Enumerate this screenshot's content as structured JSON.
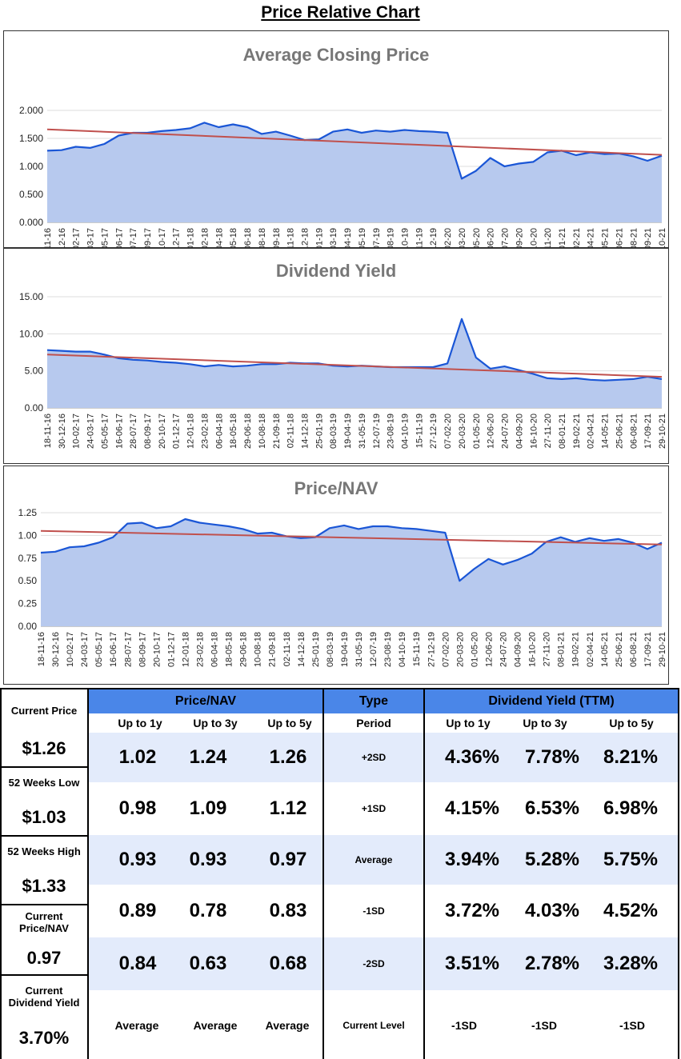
{
  "page_title": "Price Relative Chart",
  "dates": [
    "18-11-16",
    "30-12-16",
    "10-02-17",
    "24-03-17",
    "05-05-17",
    "16-06-17",
    "28-07-17",
    "08-09-17",
    "20-10-17",
    "01-12-17",
    "12-01-18",
    "23-02-18",
    "06-04-18",
    "18-05-18",
    "29-06-18",
    "10-08-18",
    "21-09-18",
    "02-11-18",
    "14-12-18",
    "25-01-19",
    "08-03-19",
    "19-04-19",
    "31-05-19",
    "12-07-19",
    "23-08-19",
    "04-10-19",
    "15-11-19",
    "27-12-19",
    "07-02-20",
    "20-03-20",
    "01-05-20",
    "12-06-20",
    "24-07-20",
    "04-09-20",
    "16-10-20",
    "27-11-20",
    "08-01-21",
    "19-02-21",
    "02-04-21",
    "14-05-21",
    "25-06-21",
    "06-08-21",
    "17-09-21",
    "29-10-21"
  ],
  "chart_data": [
    {
      "type": "area",
      "title": "Average Closing Price",
      "ylim": [
        0,
        2
      ],
      "yticks": [
        "0.000",
        "0.500",
        "1.000",
        "1.500",
        "2.000"
      ],
      "y_tick_values": [
        0,
        0.5,
        1,
        1.5,
        2
      ],
      "series": [
        {
          "name": "Average Closing Price",
          "values": [
            1.28,
            1.29,
            1.35,
            1.33,
            1.4,
            1.55,
            1.6,
            1.6,
            1.63,
            1.65,
            1.68,
            1.78,
            1.7,
            1.75,
            1.7,
            1.58,
            1.62,
            1.55,
            1.47,
            1.48,
            1.62,
            1.66,
            1.6,
            1.64,
            1.62,
            1.65,
            1.63,
            1.62,
            1.6,
            0.78,
            0.92,
            1.15,
            1.0,
            1.05,
            1.08,
            1.25,
            1.28,
            1.2,
            1.25,
            1.22,
            1.23,
            1.18,
            1.1,
            1.19
          ]
        },
        {
          "name": "Trend",
          "values": [
            1.66,
            1.205
          ]
        }
      ]
    },
    {
      "type": "area",
      "title": "Dividend Yield",
      "ylim": [
        0,
        15
      ],
      "yticks": [
        "0.00",
        "5.00",
        "10.00",
        "15.00"
      ],
      "y_tick_values": [
        0,
        5,
        10,
        15
      ],
      "series": [
        {
          "name": "Dividend Yield",
          "values": [
            7.8,
            7.7,
            7.6,
            7.6,
            7.2,
            6.7,
            6.5,
            6.4,
            6.2,
            6.1,
            5.9,
            5.6,
            5.8,
            5.6,
            5.7,
            5.9,
            5.9,
            6.1,
            6.0,
            6.0,
            5.7,
            5.6,
            5.7,
            5.6,
            5.5,
            5.5,
            5.5,
            5.5,
            6.0,
            12.0,
            6.8,
            5.3,
            5.6,
            5.1,
            4.6,
            4.0,
            3.9,
            4.0,
            3.8,
            3.7,
            3.8,
            3.9,
            4.2,
            3.9
          ]
        },
        {
          "name": "Trend",
          "values": [
            7.2,
            4.2
          ]
        }
      ]
    },
    {
      "type": "area",
      "title": "Price/NAV",
      "ylim": [
        0,
        1.25
      ],
      "yticks": [
        "0.00",
        "0.25",
        "0.50",
        "0.75",
        "1.00",
        "1.25"
      ],
      "y_tick_values": [
        0,
        0.25,
        0.5,
        0.75,
        1.0,
        1.25
      ],
      "series": [
        {
          "name": "Price/NAV",
          "values": [
            0.81,
            0.82,
            0.87,
            0.88,
            0.92,
            0.98,
            1.13,
            1.14,
            1.08,
            1.1,
            1.18,
            1.14,
            1.12,
            1.1,
            1.07,
            1.02,
            1.03,
            0.99,
            0.97,
            0.98,
            1.08,
            1.11,
            1.07,
            1.1,
            1.1,
            1.08,
            1.07,
            1.05,
            1.03,
            0.5,
            0.63,
            0.74,
            0.68,
            0.73,
            0.8,
            0.93,
            0.98,
            0.93,
            0.97,
            0.94,
            0.96,
            0.92,
            0.85,
            0.92
          ]
        },
        {
          "name": "Trend",
          "values": [
            1.05,
            0.9
          ]
        }
      ]
    }
  ],
  "summary": {
    "current_price_label": "Current Price",
    "current_price_value": "$1.26",
    "low_52w_label": "52 Weeks Low",
    "low_52w_value": "$1.03",
    "high_52w_label": "52 Weeks High",
    "high_52w_value": "$1.33",
    "current_pnav_label": "Current Price/NAV",
    "current_pnav_value": "0.97",
    "current_dy_label": "Current Dividend Yield",
    "current_dy_value": "3.70%"
  },
  "table": {
    "pnav_header": "Price/NAV",
    "type_header": "Type",
    "dy_header": "Dividend Yield (TTM)",
    "period_label": "Period",
    "col_labels": [
      "Up to 1y",
      "Up to 3y",
      "Up to 5y"
    ],
    "rows": [
      {
        "type": "+2SD",
        "pnav": [
          "1.02",
          "1.24",
          "1.26"
        ],
        "dy": [
          "4.36%",
          "7.78%",
          "8.21%"
        ]
      },
      {
        "type": "+1SD",
        "pnav": [
          "0.98",
          "1.09",
          "1.12"
        ],
        "dy": [
          "4.15%",
          "6.53%",
          "6.98%"
        ]
      },
      {
        "type": "Average",
        "pnav": [
          "0.93",
          "0.93",
          "0.97"
        ],
        "dy": [
          "3.94%",
          "5.28%",
          "5.75%"
        ]
      },
      {
        "type": "-1SD",
        "pnav": [
          "0.89",
          "0.78",
          "0.83"
        ],
        "dy": [
          "3.72%",
          "4.03%",
          "4.52%"
        ]
      },
      {
        "type": "-2SD",
        "pnav": [
          "0.84",
          "0.63",
          "0.68"
        ],
        "dy": [
          "3.51%",
          "2.78%",
          "3.28%"
        ]
      }
    ],
    "current_level_label": "Current Level",
    "pnav_current": [
      "Average",
      "Average",
      "Average"
    ],
    "dy_current": [
      "-1SD",
      "-1SD",
      "-1SD"
    ]
  },
  "colors": {
    "line": "#1a56d6",
    "fill": "#b7c9ee",
    "trend": "#c0504d",
    "header": "#4a86e8",
    "band": "#e3ebfb"
  }
}
